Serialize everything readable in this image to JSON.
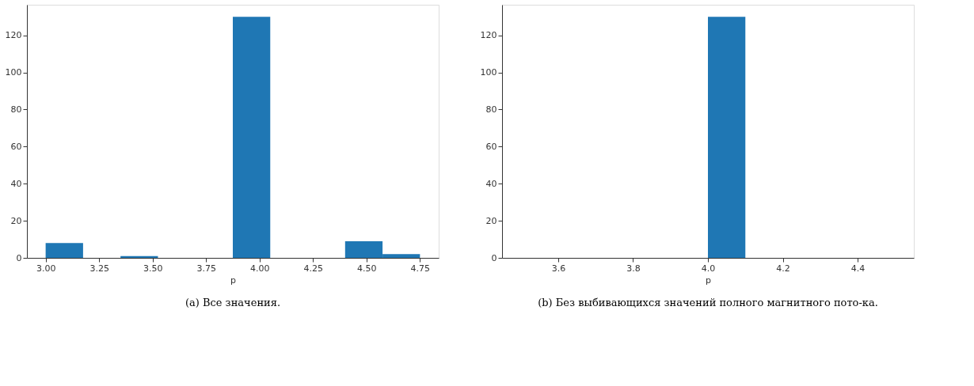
{
  "chart_data": [
    {
      "type": "histogram",
      "title": "(a) Все значения.",
      "xlabel": "p",
      "bins": [
        3.0,
        3.175,
        3.35,
        3.525,
        3.7,
        3.875,
        4.05,
        4.225,
        4.4,
        4.575,
        4.75
      ],
      "values": [
        8,
        0,
        1,
        0,
        0,
        130,
        0,
        0,
        9,
        2
      ],
      "color": "#1f77b4",
      "xlim": [
        2.9125,
        4.8375
      ],
      "ylim": [
        0,
        136.5
      ],
      "xticks": [
        {
          "value": 3.0,
          "label": "3.00"
        },
        3.25,
        {
          "value": 3.5,
          "label": "3.50"
        },
        3.75,
        {
          "value": 4.0,
          "label": "4.00"
        },
        4.25,
        {
          "value": 4.5,
          "label": "4.50"
        },
        4.75
      ],
      "yticks": [
        0,
        20,
        40,
        60,
        80,
        100,
        120
      ],
      "grid": false
    },
    {
      "type": "histogram",
      "title": "(b) Без выбивающихся значений полного магнитного пото-ка.",
      "xlabel": "p",
      "bins": [
        3.5,
        3.6,
        3.7,
        3.8,
        3.9,
        4.0,
        4.1,
        4.2,
        4.3,
        4.4,
        4.5
      ],
      "values": [
        0,
        0,
        0,
        0,
        0,
        130,
        0,
        0,
        0,
        0
      ],
      "color": "#1f77b4",
      "xlim": [
        3.45,
        4.55
      ],
      "ylim": [
        0,
        136.5
      ],
      "xticks": [
        3.6,
        3.8,
        {
          "value": 4.0,
          "label": "4.0"
        },
        4.2,
        4.4
      ],
      "yticks": [
        0,
        20,
        40,
        60,
        80,
        100,
        120
      ],
      "grid": false
    }
  ]
}
